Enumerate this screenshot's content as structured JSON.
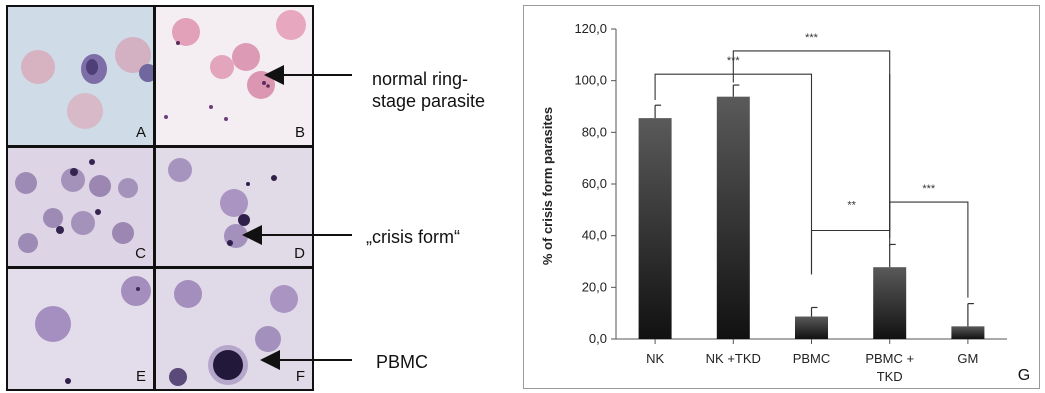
{
  "figure": {
    "panels": [
      {
        "letter": "A",
        "desc": "microscopy-panel-a"
      },
      {
        "letter": "B",
        "desc": "microscopy-panel-b"
      },
      {
        "letter": "C",
        "desc": "microscopy-panel-c"
      },
      {
        "letter": "D",
        "desc": "microscopy-panel-d"
      },
      {
        "letter": "E",
        "desc": "microscopy-panel-e"
      },
      {
        "letter": "F",
        "desc": "microscopy-panel-f"
      }
    ],
    "callouts": {
      "ring_line1": "normal ring-",
      "ring_line2": "stage parasite",
      "crisis": "„crisis form“",
      "pbmc": "PBMC"
    },
    "chart_panel_letter": "G"
  },
  "chart_data": {
    "type": "bar",
    "categories": [
      "NK",
      "NK +TKD",
      "PBMC",
      "PBMC + TKD",
      "GM"
    ],
    "category_lines": [
      [
        "NK"
      ],
      [
        "NK +TKD"
      ],
      [
        "PBMC"
      ],
      [
        "PBMC +",
        "TKD"
      ],
      [
        "GM"
      ]
    ],
    "values": [
      85.5,
      93.8,
      8.7,
      27.8,
      4.9
    ],
    "errors": [
      5.0,
      4.5,
      3.5,
      8.8,
      8.8
    ],
    "ylabel": "% of crisis form parasites",
    "ylim": [
      0,
      120
    ],
    "yticks": [
      0,
      20,
      40,
      60,
      80,
      100,
      120
    ],
    "ytick_labels": [
      "0,0",
      "20,0",
      "40,0",
      "60,0",
      "80,0",
      "100,0",
      "120,0"
    ],
    "significance": [
      {
        "from": 0,
        "to": 2,
        "label": "***"
      },
      {
        "from": 1,
        "to": 3,
        "label": "***"
      },
      {
        "from": 2,
        "to": 3,
        "label": "**"
      },
      {
        "from": 3,
        "to": 4,
        "label": "***"
      }
    ]
  }
}
